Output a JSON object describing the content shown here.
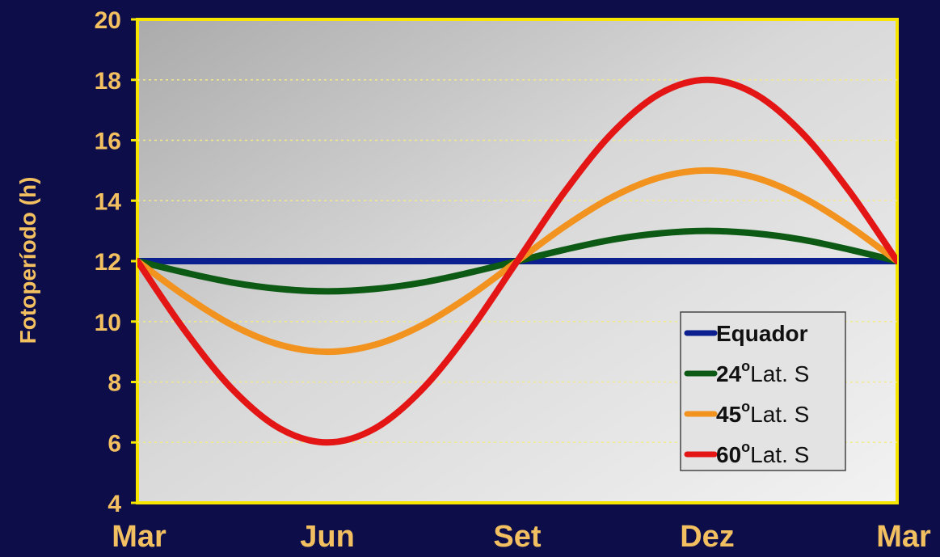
{
  "chart_data": {
    "type": "line",
    "title": "",
    "xlabel": "",
    "ylabel": "Fotoperíodo (h)",
    "ylim": [
      4,
      20
    ],
    "yticks": [
      "4",
      "6",
      "8",
      "10",
      "12",
      "14",
      "16",
      "18",
      "20"
    ],
    "x_categories": [
      "Mar",
      "Jun",
      "Set",
      "Dez",
      "Mar"
    ],
    "grid": true,
    "legend_position": "bottom-right",
    "series": [
      {
        "name": "Equador",
        "color": "#0b1f8f",
        "x": [
          0,
          0.25,
          0.5,
          0.75,
          1,
          1.25,
          1.5,
          1.75,
          2,
          2.25,
          2.5,
          2.75,
          3,
          3.25,
          3.5,
          3.75,
          4
        ],
        "y": [
          12,
          12,
          12,
          12,
          12,
          12,
          12,
          12,
          12,
          12,
          12,
          12,
          12,
          12,
          12,
          12,
          12
        ]
      },
      {
        "name": "24° Lat. S",
        "color": "#0d5a14",
        "x": [
          0,
          0.25,
          0.5,
          0.75,
          1,
          1.25,
          1.5,
          1.75,
          2,
          2.25,
          2.5,
          2.75,
          3,
          3.25,
          3.5,
          3.75,
          4
        ],
        "y": [
          12,
          11.62,
          11.29,
          11.08,
          11,
          11.08,
          11.29,
          11.62,
          12,
          12.38,
          12.71,
          12.92,
          13,
          12.92,
          12.71,
          12.38,
          12
        ]
      },
      {
        "name": "45° Lat. S",
        "color": "#f2931f",
        "x": [
          0,
          0.25,
          0.5,
          0.75,
          1,
          1.25,
          1.5,
          1.75,
          2,
          2.25,
          2.5,
          2.75,
          3,
          3.25,
          3.5,
          3.75,
          4
        ],
        "y": [
          12,
          10.85,
          9.88,
          9.23,
          9,
          9.23,
          9.88,
          10.85,
          12,
          13.15,
          14.12,
          14.77,
          15,
          14.77,
          14.12,
          13.15,
          12
        ]
      },
      {
        "name": "60° Lat. S",
        "color": "#e31515",
        "x": [
          0,
          0.25,
          0.5,
          0.75,
          1,
          1.25,
          1.5,
          1.75,
          2,
          2.25,
          2.5,
          2.75,
          3,
          3.25,
          3.5,
          3.75,
          4
        ],
        "y": [
          12,
          9.7,
          7.76,
          6.46,
          6,
          6.46,
          7.76,
          9.7,
          12,
          14.3,
          16.24,
          17.54,
          18,
          17.54,
          16.24,
          14.3,
          12
        ]
      }
    ]
  },
  "legend": {
    "items": [
      {
        "label": "Equador",
        "deg": "",
        "suffix": ""
      },
      {
        "label": "24",
        "deg": "o",
        "suffix": "Lat. S"
      },
      {
        "label": "45",
        "deg": "o",
        "suffix": "Lat. S"
      },
      {
        "label": "60",
        "deg": "o",
        "suffix": "Lat. S"
      }
    ]
  }
}
